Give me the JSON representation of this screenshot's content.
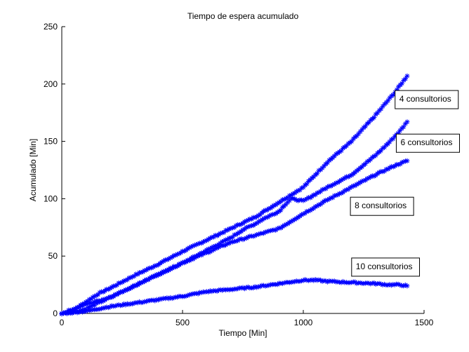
{
  "chart_data": {
    "type": "scatter",
    "title": "Tiempo de espera acumulado",
    "xlabel": "Tiempo [Min]",
    "ylabel": "Acumulado [Min]",
    "xlim": [
      0,
      1500
    ],
    "ylim": [
      0,
      250
    ],
    "xticks": [
      0,
      500,
      1000,
      1500
    ],
    "yticks": [
      0,
      50,
      100,
      150,
      200,
      250
    ],
    "marker": "*",
    "marker_color": "#0000ff",
    "grid": false,
    "legend": "none",
    "series": [
      {
        "name": "4 consultorios",
        "points": [
          [
            0,
            0
          ],
          [
            50,
            3
          ],
          [
            100,
            10
          ],
          [
            150,
            17
          ],
          [
            200,
            22
          ],
          [
            300,
            33
          ],
          [
            400,
            43
          ],
          [
            500,
            54
          ],
          [
            600,
            64
          ],
          [
            700,
            74
          ],
          [
            800,
            84
          ],
          [
            900,
            97
          ],
          [
            1000,
            110
          ],
          [
            1050,
            121
          ],
          [
            1100,
            132
          ],
          [
            1200,
            150
          ],
          [
            1300,
            173
          ],
          [
            1380,
            193
          ],
          [
            1430,
            207
          ]
        ]
      },
      {
        "name": "6 consultorios",
        "points": [
          [
            0,
            0
          ],
          [
            100,
            8
          ],
          [
            200,
            14
          ],
          [
            300,
            24
          ],
          [
            400,
            34
          ],
          [
            500,
            44
          ],
          [
            600,
            55
          ],
          [
            700,
            66
          ],
          [
            750,
            73
          ],
          [
            800,
            78
          ],
          [
            830,
            82
          ],
          [
            860,
            85
          ],
          [
            900,
            89
          ],
          [
            920,
            94
          ],
          [
            950,
            100
          ],
          [
            1000,
            98
          ],
          [
            1050,
            104
          ],
          [
            1100,
            110
          ],
          [
            1200,
            121
          ],
          [
            1300,
            138
          ],
          [
            1350,
            148
          ],
          [
            1400,
            159
          ],
          [
            1430,
            167
          ]
        ]
      },
      {
        "name": "8 consultorios",
        "points": [
          [
            0,
            0
          ],
          [
            50,
            1
          ],
          [
            100,
            4
          ],
          [
            150,
            9
          ],
          [
            200,
            14
          ],
          [
            300,
            24
          ],
          [
            400,
            34
          ],
          [
            500,
            44
          ],
          [
            600,
            53
          ],
          [
            700,
            62
          ],
          [
            800,
            68
          ],
          [
            900,
            74
          ],
          [
            1000,
            87
          ],
          [
            1100,
            99
          ],
          [
            1200,
            110
          ],
          [
            1300,
            121
          ],
          [
            1380,
            129
          ],
          [
            1430,
            133
          ]
        ]
      },
      {
        "name": "10 consultorios",
        "points": [
          [
            0,
            0
          ],
          [
            100,
            2
          ],
          [
            200,
            6
          ],
          [
            300,
            9
          ],
          [
            400,
            12
          ],
          [
            500,
            15
          ],
          [
            600,
            19
          ],
          [
            700,
            21
          ],
          [
            800,
            23
          ],
          [
            900,
            26
          ],
          [
            1000,
            29
          ],
          [
            1050,
            29
          ],
          [
            1100,
            28
          ],
          [
            1200,
            27
          ],
          [
            1300,
            26
          ],
          [
            1350,
            25
          ],
          [
            1400,
            25
          ],
          [
            1430,
            24
          ]
        ]
      }
    ],
    "annotations": [
      {
        "text": "4 consultorios",
        "x": 1380,
        "y": 187
      },
      {
        "text": "6 consultorios",
        "x": 1385,
        "y": 149
      },
      {
        "text": "8 consultorios",
        "x": 1195,
        "y": 94
      },
      {
        "text": "10 consultorios",
        "x": 1200,
        "y": 41
      }
    ]
  }
}
